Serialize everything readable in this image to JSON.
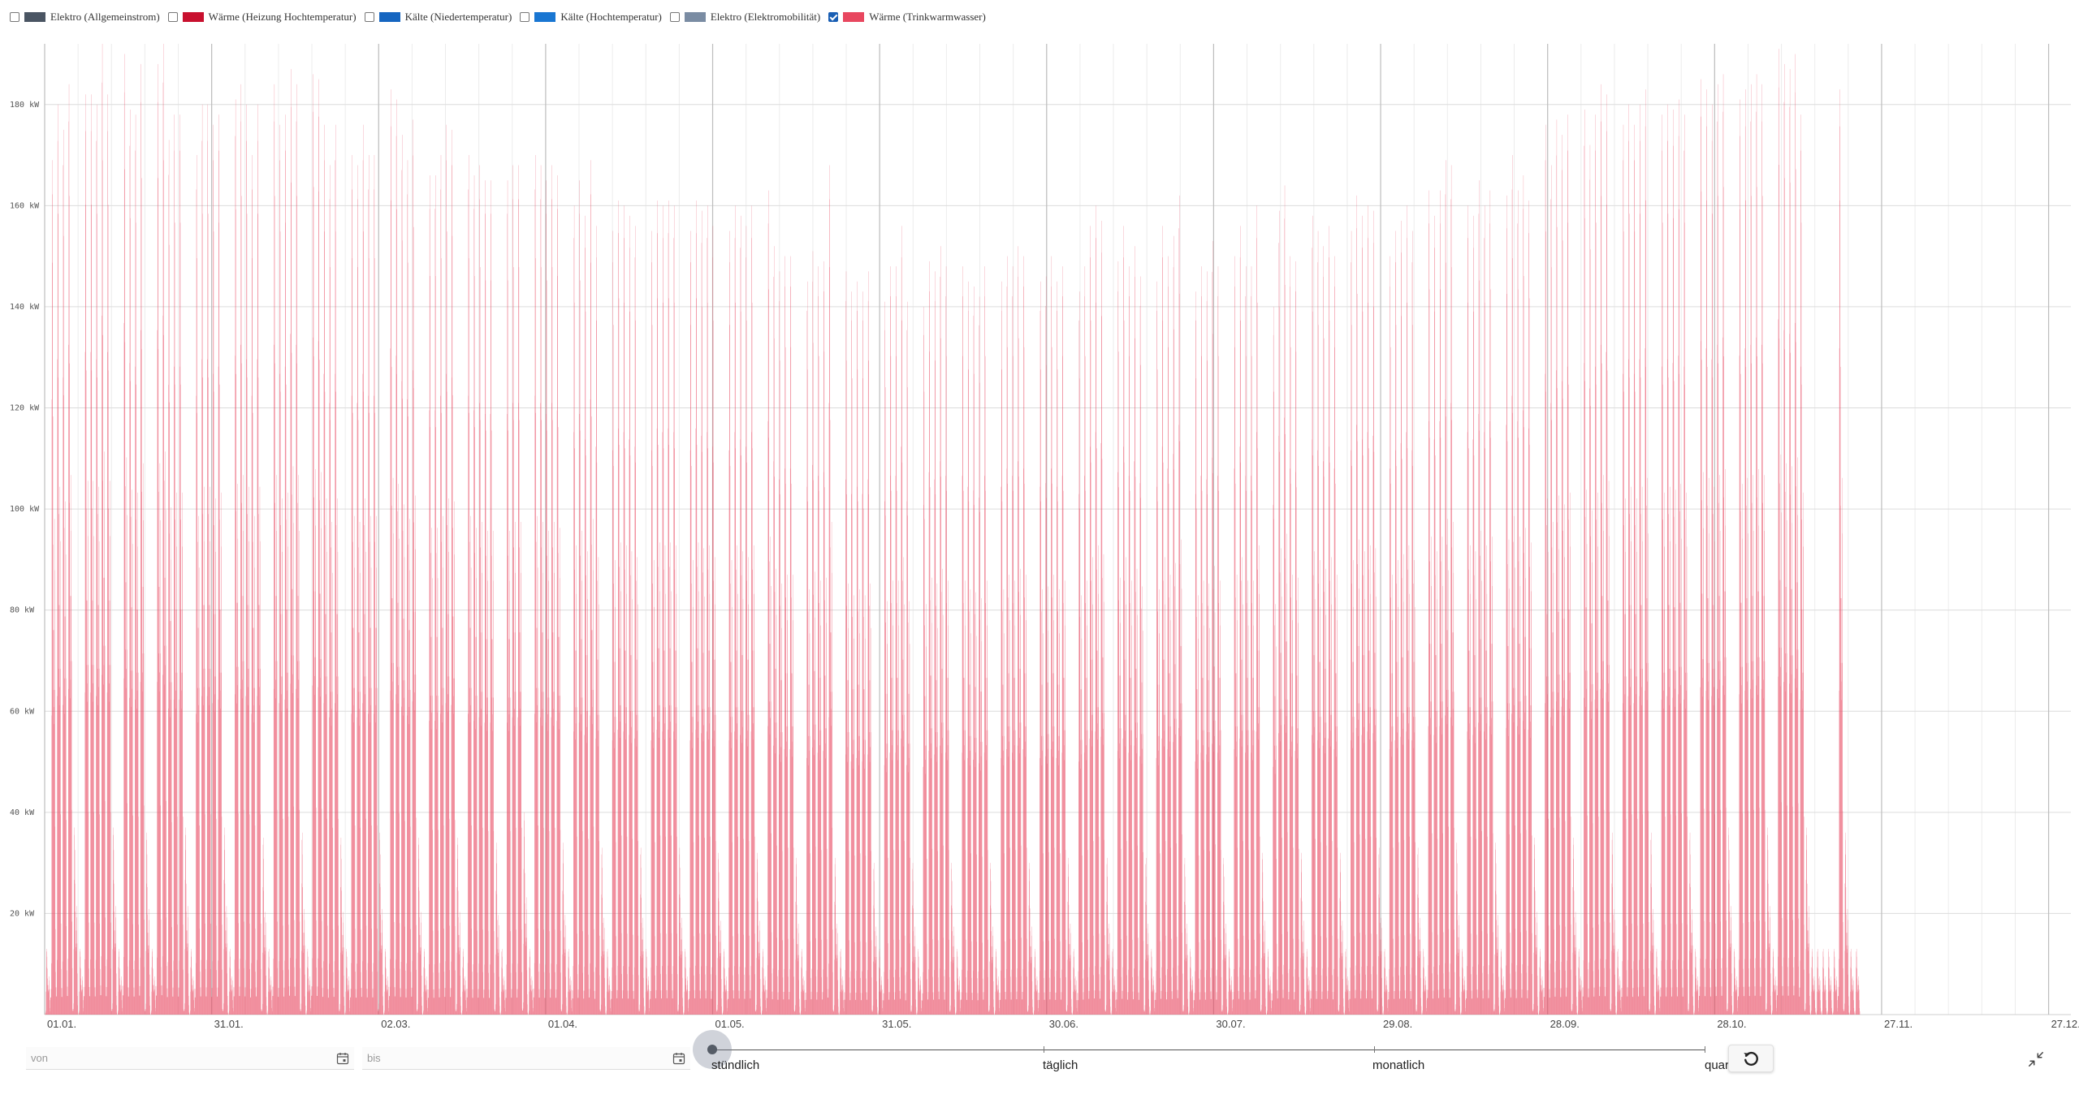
{
  "legend": {
    "items": [
      {
        "label": "Elektro (Allgemeinstrom)",
        "color": "#4a5563",
        "checked": false
      },
      {
        "label": "Wärme (Heizung Hochtemperatur)",
        "color": "#c8102e",
        "checked": false
      },
      {
        "label": "Kälte (Niedertemperatur)",
        "color": "#1565c0",
        "checked": false
      },
      {
        "label": "Kälte (Hochtemperatur)",
        "color": "#1976d2",
        "checked": false
      },
      {
        "label": "Elektro (Elektromobilität)",
        "color": "#7a8ca3",
        "checked": false
      },
      {
        "label": "Wärme (Trinkwarmwasser)",
        "color": "#e8475f",
        "checked": true
      }
    ]
  },
  "chart_data": {
    "type": "bar",
    "series": [
      {
        "name": "Wärme (Trinkwarmwasser)",
        "color": "#e8475f"
      }
    ],
    "yticks": [
      "20 kW",
      "40 kW",
      "60 kW",
      "80 kW",
      "100 kW",
      "120 kW",
      "140 kW",
      "160 kW",
      "180 kW"
    ],
    "ylim": [
      0,
      192
    ],
    "xticks": [
      "01.01.",
      "31.01.",
      "02.03.",
      "01.04.",
      "01.05.",
      "31.05.",
      "30.06.",
      "30.07.",
      "29.08.",
      "28.09.",
      "28.10.",
      "27.11.",
      "27.12."
    ],
    "x_range_days": [
      0,
      364
    ],
    "daily_peaks_kw": [
      13,
      169,
      180,
      175,
      184,
      37,
      13,
      182,
      182,
      180,
      192,
      182,
      37,
      13,
      190,
      179,
      178,
      188,
      36,
      13,
      188,
      192,
      173,
      178,
      178,
      37,
      13,
      170,
      180,
      180,
      176,
      178,
      37,
      13,
      181,
      184,
      180,
      170,
      180,
      35,
      13,
      184,
      176,
      178,
      187,
      184,
      36,
      13,
      186,
      185,
      176,
      168,
      176,
      35,
      13,
      170,
      168,
      176,
      170,
      170,
      36,
      13,
      183,
      181,
      174,
      169,
      177,
      35,
      13,
      166,
      166,
      170,
      176,
      175,
      35,
      13,
      170,
      166,
      168,
      165,
      165,
      34,
      13,
      165,
      168,
      168,
      40,
      13,
      170,
      168,
      165,
      168,
      166,
      34,
      13,
      160,
      165,
      158,
      169,
      156,
      33,
      13,
      155,
      161,
      160,
      158,
      156,
      33,
      13,
      155,
      161,
      160,
      161,
      160,
      33,
      13,
      155,
      161,
      159,
      160,
      156,
      32,
      13,
      155,
      160,
      158,
      156,
      160,
      32,
      13,
      163,
      152,
      147,
      150,
      150,
      31,
      13,
      145,
      151,
      148,
      149,
      168,
      31,
      13,
      147,
      143,
      145,
      143,
      147,
      30,
      13,
      141,
      148,
      148,
      156,
      141,
      30,
      13,
      140,
      149,
      147,
      152,
      148,
      30,
      13,
      148,
      145,
      144,
      142,
      148,
      30,
      13,
      145,
      150,
      148,
      152,
      150,
      30,
      13,
      145,
      146,
      150,
      145,
      148,
      31,
      13,
      143,
      148,
      156,
      160,
      157,
      31,
      13,
      149,
      156,
      148,
      152,
      146,
      31,
      13,
      145,
      156,
      150,
      154,
      162,
      31,
      13,
      143,
      148,
      147,
      153,
      148,
      31,
      13,
      150,
      156,
      148,
      148,
      160,
      32,
      13,
      140,
      159,
      164,
      150,
      149,
      32,
      13,
      158,
      155,
      152,
      156,
      150,
      32,
      13,
      155,
      162,
      158,
      160,
      159,
      33,
      13,
      150,
      155,
      157,
      160,
      155,
      33,
      13,
      163,
      158,
      163,
      169,
      168,
      34,
      13,
      160,
      158,
      165,
      160,
      163,
      34,
      13,
      162,
      170,
      163,
      166,
      161,
      35,
      13,
      176,
      168,
      177,
      174,
      178,
      35,
      13,
      179,
      172,
      178,
      184,
      182,
      36,
      13,
      176,
      180,
      176,
      180,
      183,
      36,
      13,
      178,
      180,
      179,
      181,
      178,
      36,
      13,
      185,
      183,
      180,
      184,
      186,
      37,
      13,
      181,
      183,
      184,
      186,
      184,
      37,
      13,
      191,
      188,
      187,
      190,
      178,
      37,
      13,
      13,
      13,
      13,
      13,
      183,
      36,
      13,
      13
    ]
  },
  "filters": {
    "from_placeholder": "von",
    "to_placeholder": "bis"
  },
  "resolution_slider": {
    "labels": [
      "stündlich",
      "täglich",
      "monatlich",
      "quar"
    ],
    "selected_index": 0
  }
}
